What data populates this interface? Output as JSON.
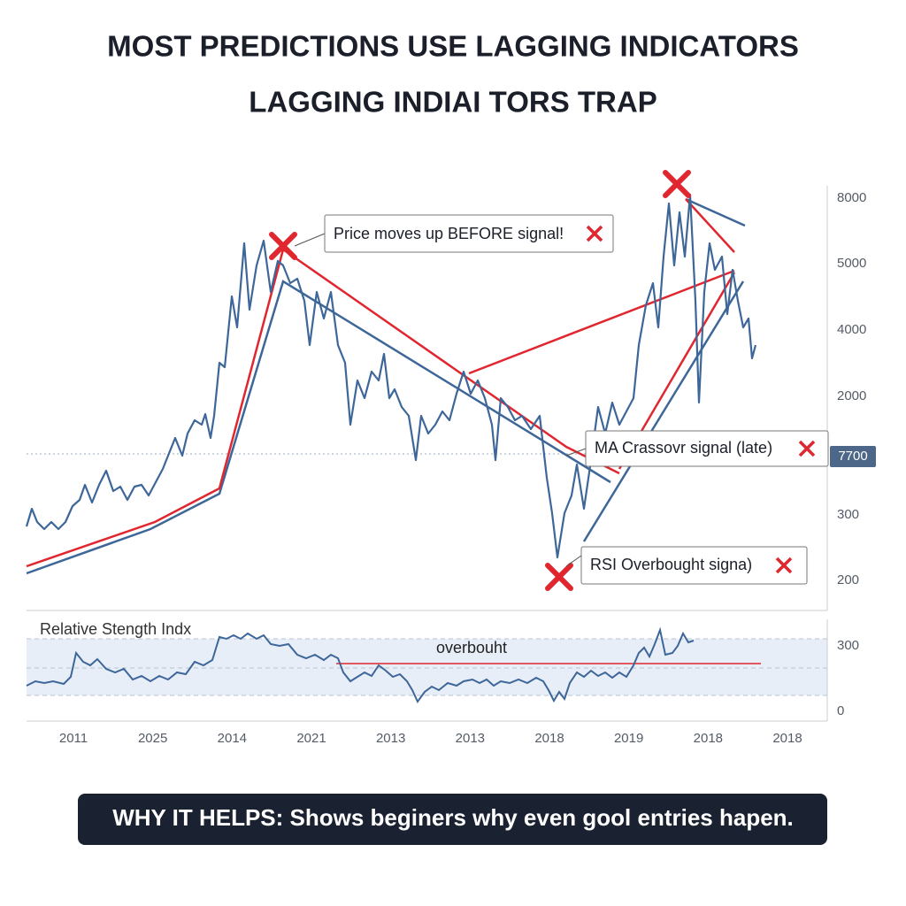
{
  "header": {
    "title_line_1": "MOST PREDICTIONS USE LAGGING INDICATORS",
    "title_line_2": "LAGGING INDIAI TORS TRAP"
  },
  "price_panel": {
    "y_axis_labels": [
      "8000",
      "5000",
      "4000",
      "2000",
      "300",
      "200"
    ],
    "current_label": "7700",
    "annotations": [
      "Price moves up BEFORE signal!",
      "MA Crassovr signal (late)",
      "RSI Overbought signa)"
    ]
  },
  "rsi_panel": {
    "title": "Relative Stength Indx",
    "zone_label": "overbouht",
    "y_axis_labels": [
      "300",
      "0"
    ]
  },
  "x_axis_labels": [
    "2011",
    "2025",
    "2014",
    "2021",
    "2013",
    "2013",
    "2018",
    "2019",
    "2018",
    "2018"
  ],
  "footer": {
    "text": "WHY IT HELPS: Shows beginers why even gool entries hapen."
  }
}
